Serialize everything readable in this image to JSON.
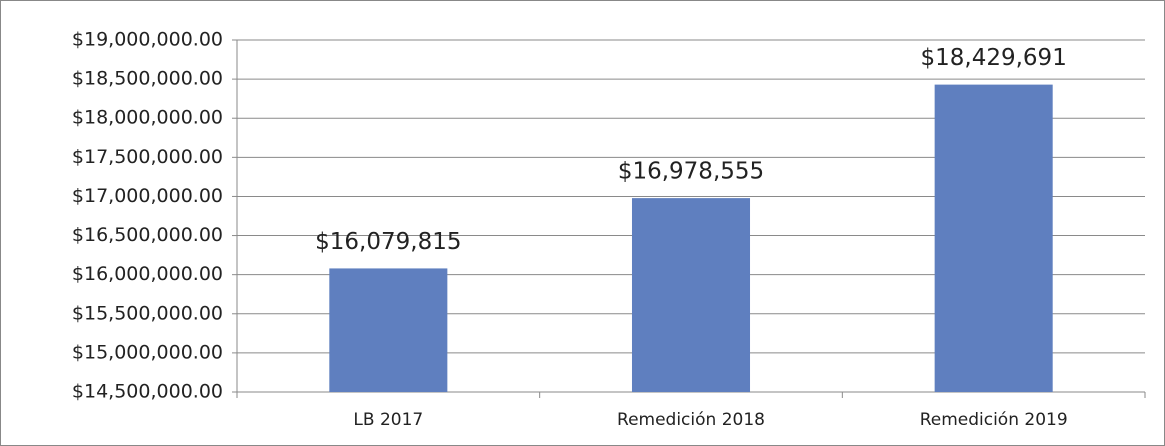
{
  "chart_data": {
    "type": "bar",
    "categories": [
      "LB 2017",
      "Remedición 2018",
      "Remedición 2019"
    ],
    "values": [
      16079815,
      16978555,
      18429691
    ],
    "value_labels": [
      "$16,079,815",
      "$16,978,555",
      "$18,429,691"
    ],
    "color": "#5f7fbf",
    "ylim": [
      14500000,
      19000000
    ],
    "yticks": [
      {
        "value": 14500000,
        "label": "$14,500,000.00"
      },
      {
        "value": 15000000,
        "label": "$15,000,000.00"
      },
      {
        "value": 15500000,
        "label": "$15,500,000.00"
      },
      {
        "value": 16000000,
        "label": "$16,000,000.00"
      },
      {
        "value": 16500000,
        "label": "$16,500,000.00"
      },
      {
        "value": 17000000,
        "label": "$17,000,000.00"
      },
      {
        "value": 17500000,
        "label": "$17,500,000.00"
      },
      {
        "value": 18000000,
        "label": "$18,000,000.00"
      },
      {
        "value": 18500000,
        "label": "$18,500,000.00"
      },
      {
        "value": 19000000,
        "label": "$19,000,000.00"
      }
    ],
    "grid": true
  }
}
